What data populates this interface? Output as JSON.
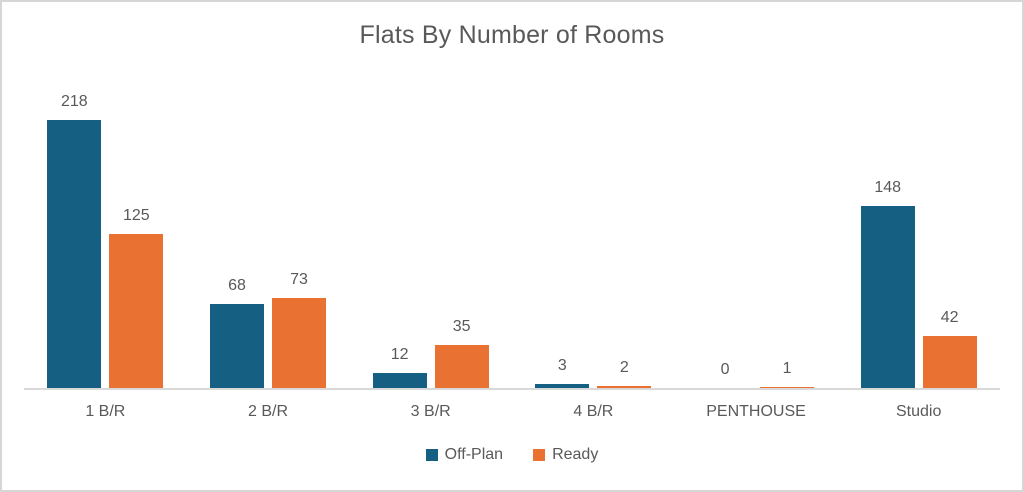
{
  "title": "Flats By Number of Rooms",
  "colors": {
    "off_plan": "#156082",
    "ready": "#E97132",
    "axis": "#D9D9D9",
    "frame_border": "#D6D6D6",
    "text": "#595959",
    "background": "#FFFFFF"
  },
  "legend": {
    "position": "bottom",
    "items": [
      {
        "label": "Off-Plan",
        "color": "#156082"
      },
      {
        "label": "Ready",
        "color": "#E97132"
      }
    ]
  },
  "chart_data": {
    "type": "bar",
    "title": "Flats By Number of Rooms",
    "categories": [
      "1 B/R",
      "2 B/R",
      "3 B/R",
      "4 B/R",
      "PENTHOUSE",
      "Studio"
    ],
    "series": [
      {
        "name": "Off-Plan",
        "color": "#156082",
        "values": [
          218,
          68,
          12,
          3,
          0,
          148
        ]
      },
      {
        "name": "Ready",
        "color": "#E97132",
        "values": [
          125,
          73,
          35,
          2,
          1,
          42
        ]
      }
    ],
    "data_labels": true,
    "legend_position": "bottom",
    "gridlines": false,
    "y_axis_visible": false,
    "x_axis_visible": true,
    "ylim": [
      0,
      252
    ]
  }
}
